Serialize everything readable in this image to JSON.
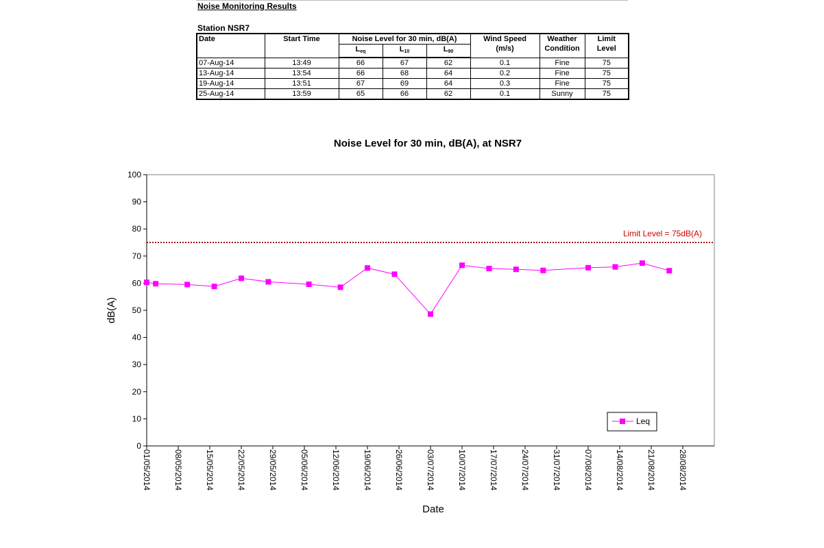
{
  "report": {
    "title": "Noise Monitoring Results",
    "station": "Station NSR7"
  },
  "table": {
    "headers": {
      "date": "Date",
      "start_time": "Start Time",
      "noise_level": "Noise Level for 30 min, dB(A)",
      "wind_speed": "Wind Speed",
      "wind_unit": "(m/s)",
      "weather": "Weather",
      "weather2": "Condition",
      "limit": "Limit",
      "limit2": "Level",
      "leq_main": "L",
      "leq_sub": "eq",
      "l10_main": "L",
      "l10_sub": "10",
      "l90_main": "L",
      "l90_sub": "90"
    },
    "rows": [
      {
        "date": "07-Aug-14",
        "time": "13:49",
        "leq": "66",
        "l10": "67",
        "l90": "62",
        "wind": "0.1",
        "weather": "Fine",
        "limit": "75"
      },
      {
        "date": "13-Aug-14",
        "time": "13:54",
        "leq": "66",
        "l10": "68",
        "l90": "64",
        "wind": "0.2",
        "weather": "Fine",
        "limit": "75"
      },
      {
        "date": "19-Aug-14",
        "time": "13:51",
        "leq": "67",
        "l10": "69",
        "l90": "64",
        "wind": "0.3",
        "weather": "Fine",
        "limit": "75"
      },
      {
        "date": "25-Aug-14",
        "time": "13:59",
        "leq": "65",
        "l10": "66",
        "l90": "62",
        "wind": "0.1",
        "weather": "Sunny",
        "limit": "75"
      }
    ]
  },
  "chart_data": {
    "type": "line",
    "title": "Noise Level for 30 min, dB(A), at NSR7",
    "xlabel": "Date",
    "ylabel": "dB(A)",
    "ylim": [
      0,
      100
    ],
    "yticks": [
      0,
      10,
      20,
      30,
      40,
      50,
      60,
      70,
      80,
      90,
      100
    ],
    "xlim": [
      "01/05/2014",
      "04/09/2014"
    ],
    "xticks": [
      "01/05/2014",
      "08/05/2014",
      "15/05/2014",
      "22/05/2014",
      "29/05/2014",
      "05/06/2014",
      "12/06/2014",
      "19/06/2014",
      "26/06/2014",
      "03/07/2014",
      "10/07/2014",
      "17/07/2014",
      "24/07/2014",
      "31/07/2014",
      "07/08/2014",
      "14/08/2014",
      "21/08/2014",
      "28/08/2014"
    ],
    "series": [
      {
        "name": "Leq",
        "color": "#ff00ff",
        "marker": "square",
        "x": [
          "01/05/2014",
          "03/05/2014",
          "10/05/2014",
          "16/05/2014",
          "22/05/2014",
          "28/05/2014",
          "06/06/2014",
          "13/06/2014",
          "19/06/2014",
          "25/06/2014",
          "03/07/2014",
          "10/07/2014",
          "16/07/2014",
          "22/07/2014",
          "28/07/2014",
          "07/08/2014",
          "13/08/2014",
          "19/08/2014",
          "25/08/2014"
        ],
        "y": [
          60.3,
          59.8,
          59.5,
          58.8,
          61.8,
          60.5,
          59.6,
          58.5,
          65.6,
          63.3,
          48.6,
          66.6,
          65.4,
          65.1,
          64.7,
          65.7,
          66.0,
          67.4,
          64.6
        ]
      }
    ],
    "limit_line": {
      "value": 75,
      "label": "Limit Level  = 75dB(A)",
      "color": "#cc0000",
      "style": "dotted"
    },
    "legend": {
      "position": "bottom-right",
      "entries": [
        "Leq"
      ]
    },
    "grid": false
  }
}
